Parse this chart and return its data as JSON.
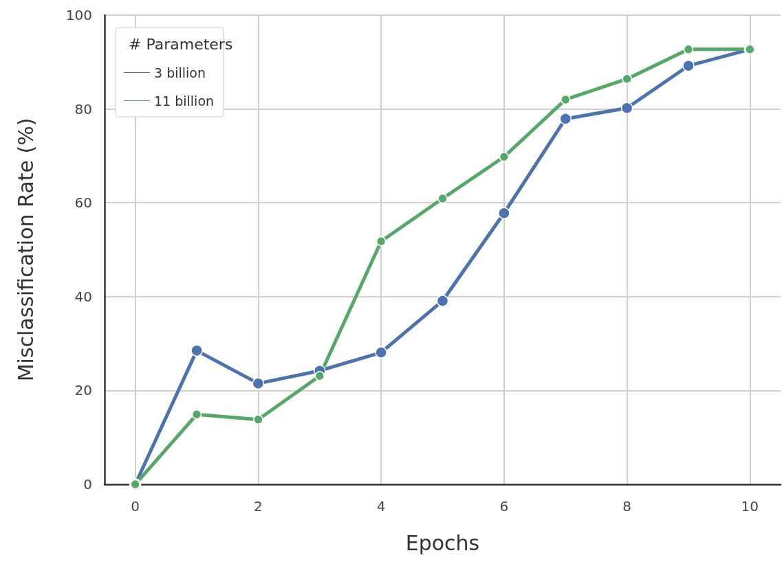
{
  "chart_data": {
    "type": "line",
    "xlabel": "Epochs",
    "ylabel": "Misclassification Rate (%)",
    "legend_title": "# Parameters",
    "x": [
      0,
      1,
      2,
      3,
      4,
      5,
      6,
      7,
      8,
      9,
      10
    ],
    "series": [
      {
        "name": "3 billion",
        "color": "#4c72b0",
        "values": [
          0,
          28.5,
          21.5,
          24.2,
          28.1,
          39.1,
          57.8,
          77.9,
          80.2,
          89.2,
          92.7
        ]
      },
      {
        "name": "11 billion",
        "color": "#55a868",
        "values": [
          0,
          14.9,
          13.8,
          23.1,
          51.8,
          60.9,
          69.8,
          82.0,
          86.4,
          92.7,
          92.7
        ]
      }
    ],
    "xlim": [
      -0.5,
      10.5
    ],
    "xticks": [
      0,
      2,
      4,
      6,
      8,
      10
    ],
    "ylim": [
      0,
      100
    ],
    "yticks": [
      0,
      20,
      40,
      60,
      80,
      100
    ],
    "grid": true,
    "legend": "top left",
    "marker": "circle",
    "line_style": "solid"
  }
}
